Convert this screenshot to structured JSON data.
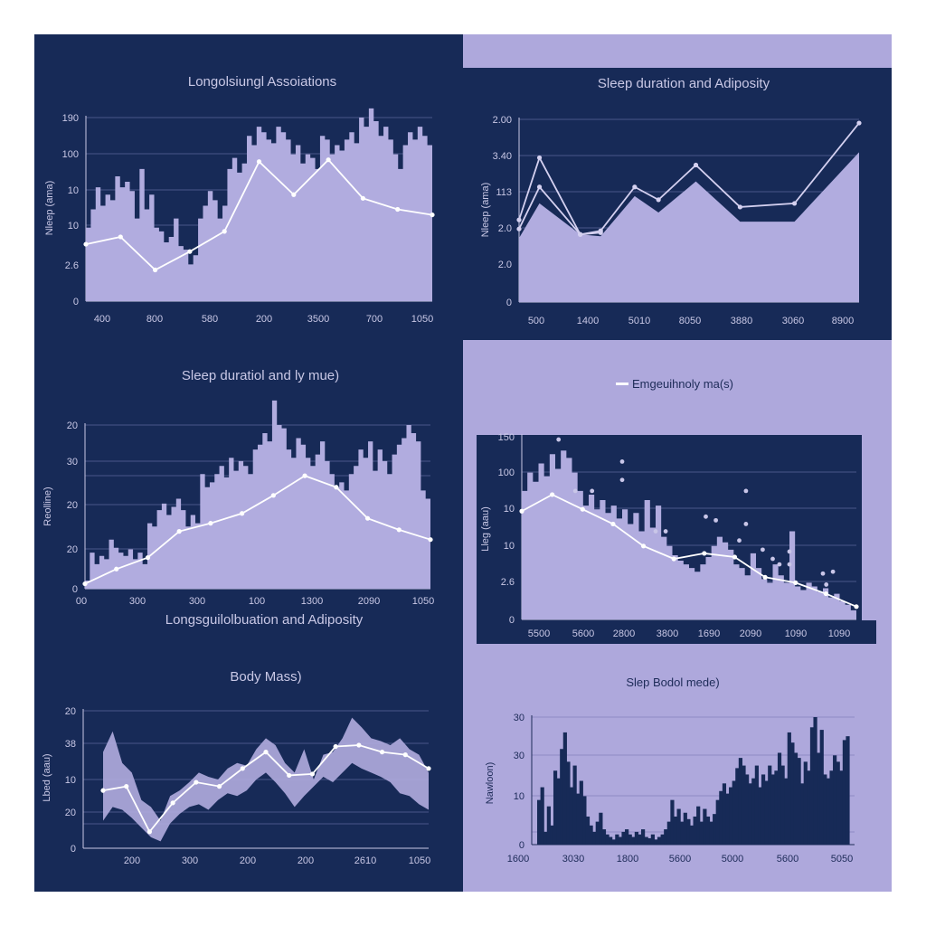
{
  "colors": {
    "navy": "#172a57",
    "lavender": "#aea8dc",
    "fill": "#b1acdf",
    "line": "#ffffff",
    "text_light": "#c9c8e6",
    "text_dark": "#1d2b58",
    "grid_dark": "#4a5688",
    "grid_light": "#8f8ac4"
  },
  "panels": {
    "p1": {
      "title": "Longolsiungl Assoiations",
      "ylabel": "Nleep (ama)"
    },
    "p2": {
      "title": "Sleep duration and Adiposity",
      "ylabel": "Nleep (ama)"
    },
    "p3": {
      "title": "Sleep duratiol and ly mue)",
      "subtitle": "Longsguilolbuation and Adiposity",
      "ylabel": "Reolline)"
    },
    "p4": {
      "legend": "Emgeuihnoly ma(s)",
      "ylabel": "Lleg (aau)"
    },
    "p5": {
      "title": "Body Mass)",
      "ylabel": "Lbed (aau)"
    },
    "p6": {
      "title": "Slep Bodol mede)",
      "ylabel": "Nawloon)"
    }
  },
  "chart_data": [
    {
      "id": "p1",
      "type": "area",
      "title": "Longolsiungl Assoiations",
      "xlabel": "",
      "ylabel": "Nleep (ama)",
      "y_tick_labels": [
        "0",
        "2.6",
        "10",
        "10",
        "100",
        "190"
      ],
      "x_tick_labels": [
        "400",
        "800",
        "580",
        "200",
        "3500",
        "700",
        "1050"
      ],
      "grid": true,
      "series": [
        {
          "name": "noisy-area",
          "kind": "area",
          "values": [
            0.4,
            0.5,
            0.62,
            0.52,
            0.58,
            0.55,
            0.68,
            0.62,
            0.65,
            0.6,
            0.45,
            0.72,
            0.5,
            0.58,
            0.4,
            0.38,
            0.32,
            0.35,
            0.45,
            0.3,
            0.28,
            0.2,
            0.25,
            0.45,
            0.52,
            0.6,
            0.55,
            0.45,
            0.52,
            0.72,
            0.78,
            0.7,
            0.75,
            0.9,
            0.85,
            0.95,
            0.92,
            0.88,
            0.86,
            0.95,
            0.92,
            0.88,
            0.8,
            0.85,
            0.75,
            0.8,
            0.78,
            0.72,
            0.9,
            0.88,
            0.8,
            0.85,
            0.82,
            0.88,
            0.92,
            0.86,
            1.0,
            0.95,
            1.05,
            0.98,
            0.9,
            0.95,
            0.88,
            0.8,
            0.72,
            0.85,
            0.92,
            0.88,
            0.95,
            0.9,
            0.85
          ]
        },
        {
          "name": "trend",
          "kind": "line",
          "values": [
            0.31,
            0.35,
            0.17,
            0.27,
            0.38,
            0.76,
            0.58,
            0.77,
            0.56,
            0.5,
            0.47
          ]
        }
      ]
    },
    {
      "id": "p2",
      "type": "area",
      "title": "Sleep duration and Adiposity",
      "xlabel": "",
      "ylabel": "Nleep (ama)",
      "y_tick_labels": [
        "0",
        "2.0",
        "2.0",
        "113",
        "3.40",
        "2.00"
      ],
      "x_tick_labels": [
        "500",
        "1400",
        "5010",
        "8050",
        "3880",
        "3060",
        "8900"
      ],
      "grid": true,
      "series": [
        {
          "name": "area",
          "kind": "area",
          "x": [
            0,
            0.06,
            0.18,
            0.24,
            0.34,
            0.41,
            0.52,
            0.65,
            0.81,
            1.0
          ],
          "values": [
            0.35,
            0.54,
            0.37,
            0.36,
            0.58,
            0.49,
            0.66,
            0.44,
            0.44,
            0.82
          ]
        },
        {
          "name": "upper-line",
          "kind": "line",
          "x": [
            0,
            0.06,
            0.18,
            0.24,
            0.34,
            0.41,
            0.52,
            0.65,
            0.81,
            1.0
          ],
          "values": [
            0.45,
            0.79,
            0.37,
            0.39,
            0.63,
            0.56,
            0.75,
            0.52,
            0.54,
            0.98
          ]
        },
        {
          "name": "lower-line",
          "kind": "line",
          "x": [
            0,
            0.06,
            0.18,
            0.24
          ],
          "values": [
            0.4,
            0.63,
            0.37,
            0.38
          ]
        }
      ]
    },
    {
      "id": "p3",
      "type": "area",
      "title": "Sleep duratiol and ly mue)",
      "xlabel": "Longsguilolbuation and Adiposity",
      "ylabel": "Reolline)",
      "y_tick_labels": [
        "0",
        "20",
        "20",
        "30",
        "20"
      ],
      "x_tick_labels": [
        "00",
        "300",
        "300",
        "100",
        "1300",
        "2090",
        "1050"
      ],
      "grid": true,
      "series": [
        {
          "name": "noisy-area",
          "kind": "area",
          "values": [
            0.05,
            0.22,
            0.15,
            0.2,
            0.18,
            0.3,
            0.25,
            0.22,
            0.2,
            0.24,
            0.18,
            0.22,
            0.15,
            0.4,
            0.38,
            0.48,
            0.52,
            0.45,
            0.5,
            0.55,
            0.48,
            0.38,
            0.45,
            0.4,
            0.7,
            0.62,
            0.65,
            0.7,
            0.75,
            0.68,
            0.8,
            0.72,
            0.78,
            0.75,
            0.7,
            0.85,
            0.88,
            0.95,
            0.9,
            1.15,
            1.0,
            0.98,
            0.85,
            0.8,
            0.92,
            0.88,
            0.8,
            0.75,
            0.82,
            0.9,
            0.78,
            0.7,
            0.62,
            0.65,
            0.6,
            0.7,
            0.75,
            0.85,
            0.8,
            0.9,
            0.72,
            0.85,
            0.78,
            0.7,
            0.82,
            0.88,
            0.92,
            1.0,
            0.95,
            0.9,
            0.6,
            0.55
          ]
        },
        {
          "name": "trend",
          "kind": "line",
          "values": [
            0.03,
            0.12,
            0.19,
            0.35,
            0.4,
            0.46,
            0.57,
            0.69,
            0.62,
            0.43,
            0.36,
            0.3
          ]
        }
      ]
    },
    {
      "id": "p4",
      "type": "area",
      "title": "",
      "legend": [
        "Emgeuihnoly ma(s)"
      ],
      "xlabel": "",
      "ylabel": "Lleg (aau)",
      "y_tick_labels": [
        "0",
        "2.6",
        "10",
        "10",
        "100",
        "150"
      ],
      "x_tick_labels": [
        "5500",
        "5600",
        "2800",
        "3800",
        "1690",
        "2090",
        "1090",
        "1090"
      ],
      "grid": true,
      "series": [
        {
          "name": "noisy-area",
          "kind": "area",
          "values": [
            0.7,
            0.8,
            0.75,
            0.85,
            0.78,
            0.9,
            0.82,
            0.92,
            0.88,
            0.8,
            0.7,
            0.62,
            0.68,
            0.6,
            0.65,
            0.58,
            0.62,
            0.55,
            0.6,
            0.52,
            0.58,
            0.48,
            0.65,
            0.5,
            0.62,
            0.45,
            0.4,
            0.35,
            0.32,
            0.3,
            0.28,
            0.26,
            0.3,
            0.34,
            0.4,
            0.45,
            0.42,
            0.38,
            0.3,
            0.28,
            0.24,
            0.36,
            0.28,
            0.22,
            0.2,
            0.3,
            0.24,
            0.2,
            0.48,
            0.18,
            0.16,
            0.2,
            0.18,
            0.15,
            0.17,
            0.12,
            0.14,
            0.1,
            0.08,
            0.05
          ]
        },
        {
          "name": "trend",
          "kind": "line",
          "values": [
            0.59,
            0.68,
            0.6,
            0.52,
            0.4,
            0.33,
            0.36,
            0.34,
            0.23,
            0.2,
            0.14,
            0.07
          ]
        },
        {
          "name": "scatter",
          "kind": "scatter",
          "points": [
            [
              0.11,
              0.98
            ],
            [
              0.3,
              0.86
            ],
            [
              0.3,
              0.76
            ],
            [
              0.16,
              0.7
            ],
            [
              0.21,
              0.7
            ],
            [
              0.4,
              0.48
            ],
            [
              0.43,
              0.48
            ],
            [
              0.55,
              0.56
            ],
            [
              0.58,
              0.54
            ],
            [
              0.67,
              0.7
            ],
            [
              0.67,
              0.52
            ],
            [
              0.65,
              0.43
            ],
            [
              0.72,
              0.38
            ],
            [
              0.75,
              0.33
            ],
            [
              0.77,
              0.3
            ],
            [
              0.8,
              0.37
            ],
            [
              0.8,
              0.3
            ],
            [
              0.9,
              0.25
            ],
            [
              0.93,
              0.26
            ],
            [
              0.91,
              0.19
            ]
          ]
        }
      ]
    },
    {
      "id": "p5",
      "type": "area",
      "title": "Body Mass)",
      "xlabel": "",
      "ylabel": "Lbed (aau)",
      "y_tick_labels": [
        "0",
        "20",
        "10",
        "38",
        "20"
      ],
      "x_tick_labels": [
        "200",
        "300",
        "200",
        "200",
        "2610",
        "1050"
      ],
      "grid": true,
      "series": [
        {
          "name": "band-upper",
          "kind": "band",
          "upper": [
            0.7,
            0.85,
            0.62,
            0.55,
            0.35,
            0.3,
            0.2,
            0.38,
            0.42,
            0.48,
            0.55,
            0.52,
            0.5,
            0.58,
            0.62,
            0.6,
            0.72,
            0.8,
            0.75,
            0.62,
            0.55,
            0.72,
            0.5,
            0.68,
            0.7,
            0.8,
            0.95,
            0.88,
            0.8,
            0.78,
            0.75,
            0.8,
            0.72,
            0.68,
            0.55
          ],
          "lower": [
            0.2,
            0.3,
            0.28,
            0.22,
            0.15,
            0.08,
            0.05,
            0.18,
            0.25,
            0.3,
            0.32,
            0.28,
            0.35,
            0.4,
            0.38,
            0.42,
            0.5,
            0.55,
            0.48,
            0.4,
            0.3,
            0.38,
            0.45,
            0.52,
            0.48,
            0.55,
            0.62,
            0.58,
            0.55,
            0.52,
            0.48,
            0.4,
            0.38,
            0.32,
            0.28
          ]
        },
        {
          "name": "trend",
          "kind": "line",
          "values": [
            0.42,
            0.45,
            0.12,
            0.33,
            0.48,
            0.45,
            0.58,
            0.7,
            0.53,
            0.54,
            0.74,
            0.75,
            0.7,
            0.68,
            0.58
          ]
        }
      ]
    },
    {
      "id": "p6",
      "type": "bar",
      "title": "Slep Bodol mede)",
      "xlabel": "",
      "ylabel": "Nawloon)",
      "y_tick_labels": [
        "0",
        "10",
        "30",
        "30"
      ],
      "x_tick_labels": [
        "1600",
        "3030",
        "1800",
        "5600",
        "5000",
        "5600",
        "5050"
      ],
      "grid": true,
      "values": [
        0.35,
        0.45,
        0.1,
        0.3,
        0.15,
        0.58,
        0.52,
        0.75,
        0.88,
        0.65,
        0.45,
        0.62,
        0.4,
        0.5,
        0.38,
        0.22,
        0.15,
        0.1,
        0.18,
        0.25,
        0.12,
        0.08,
        0.06,
        0.04,
        0.08,
        0.06,
        0.1,
        0.12,
        0.08,
        0.06,
        0.1,
        0.08,
        0.12,
        0.06,
        0.05,
        0.08,
        0.04,
        0.06,
        0.08,
        0.12,
        0.18,
        0.35,
        0.22,
        0.28,
        0.18,
        0.25,
        0.2,
        0.15,
        0.22,
        0.3,
        0.18,
        0.28,
        0.22,
        0.18,
        0.24,
        0.35,
        0.42,
        0.48,
        0.4,
        0.45,
        0.5,
        0.6,
        0.68,
        0.62,
        0.55,
        0.48,
        0.52,
        0.62,
        0.45,
        0.55,
        0.5,
        0.62,
        0.55,
        0.58,
        0.72,
        0.62,
        0.52,
        0.88,
        0.8,
        0.72,
        0.68,
        0.48,
        0.65,
        0.58,
        0.92,
        1.0,
        0.72,
        0.9,
        0.55,
        0.52,
        0.58,
        0.7,
        0.65,
        0.58,
        0.82,
        0.85
      ]
    }
  ]
}
